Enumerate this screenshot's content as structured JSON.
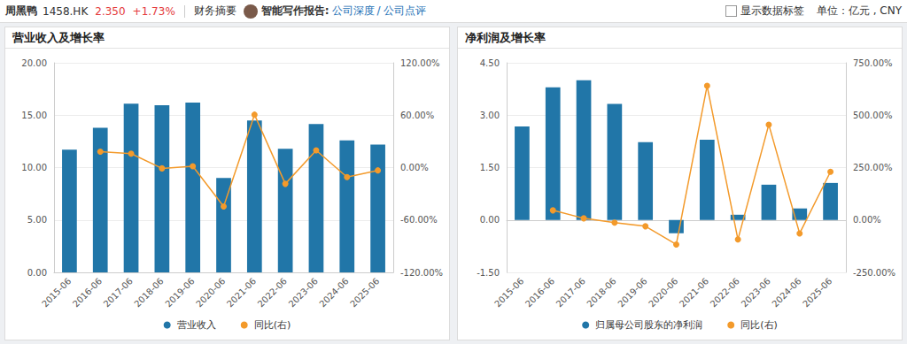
{
  "header": {
    "name": "周黑鸭",
    "code": "1458.HK",
    "price": "2.350",
    "change": "+1.73%",
    "tab": "财务摘要",
    "report_label": "智能写作报告:",
    "links": [
      "公司深度",
      "/ 公司点评"
    ],
    "checkbox": "显示数据标签",
    "unit": "单位：亿元 , CNY"
  },
  "chart_data": [
    {
      "type": "bar",
      "title": "营业收入及增长率",
      "categories": [
        "2015-06",
        "2016-06",
        "2017-06",
        "2018-06",
        "2019-06",
        "2020-06",
        "2021-06",
        "2022-06",
        "2023-06",
        "2024-06",
        "2025-06"
      ],
      "series": [
        {
          "name": "营业收入",
          "type": "bar",
          "color": "#2176a8",
          "values": [
            11.7,
            13.8,
            16.1,
            15.95,
            16.2,
            9.0,
            14.5,
            11.8,
            14.15,
            12.6,
            12.2
          ]
        },
        {
          "name": "同比(右)",
          "type": "line",
          "axis": "y2",
          "color": "#f39a2b",
          "marker": "circle",
          "values": [
            null,
            18.3,
            16.0,
            -0.9,
            1.6,
            -44.5,
            60.6,
            -18.6,
            19.7,
            -10.9,
            -3.2
          ]
        }
      ],
      "ylim": [
        0,
        20
      ],
      "yticks": [
        {
          "value": 0,
          "label": "0.00"
        },
        {
          "value": 5,
          "label": "5.00"
        },
        {
          "value": 10,
          "label": "10.00"
        },
        {
          "value": 15,
          "label": "15.00"
        },
        {
          "value": 20,
          "label": "20.00"
        }
      ],
      "y2lim": [
        -120,
        120
      ],
      "y2ticks": [
        {
          "value": -120,
          "label": "-120.00%"
        },
        {
          "value": -60,
          "label": "-60.00%"
        },
        {
          "value": 0,
          "label": "0.00%"
        },
        {
          "value": 60,
          "label": "60.00%"
        },
        {
          "value": 120,
          "label": "120.00%"
        }
      ],
      "grid": true,
      "legend": "bottom"
    },
    {
      "type": "bar",
      "title": "净利润及增长率",
      "categories": [
        "2015-06",
        "2016-06",
        "2017-06",
        "2018-06",
        "2019-06",
        "2020-06",
        "2021-06",
        "2022-06",
        "2023-06",
        "2024-06",
        "2025-06"
      ],
      "series": [
        {
          "name": "归属母公司股东的净利润",
          "type": "bar",
          "color": "#2176a8",
          "values": [
            2.68,
            3.8,
            4.0,
            3.32,
            2.23,
            -0.38,
            2.3,
            0.15,
            1.01,
            0.33,
            1.06
          ]
        },
        {
          "name": "同比(右)",
          "type": "line",
          "axis": "y2",
          "color": "#f39a2b",
          "marker": "circle",
          "values": [
            null,
            46,
            8,
            -13,
            -30,
            -117,
            640,
            -93,
            455,
            -64,
            230
          ]
        }
      ],
      "ylim": [
        -1.5,
        4.5
      ],
      "yticks": [
        {
          "value": -1.5,
          "label": "-1.50"
        },
        {
          "value": 0,
          "label": "0.00"
        },
        {
          "value": 1.5,
          "label": "1.50"
        },
        {
          "value": 3,
          "label": "3.00"
        },
        {
          "value": 4.5,
          "label": "4.50"
        }
      ],
      "y2lim": [
        -250,
        750
      ],
      "y2ticks": [
        {
          "value": -250,
          "label": "-250.00%"
        },
        {
          "value": 0,
          "label": "0.00%"
        },
        {
          "value": 250,
          "label": "250.00%"
        },
        {
          "value": 500,
          "label": "500.00%"
        },
        {
          "value": 750,
          "label": "750.00%"
        }
      ],
      "grid": true,
      "legend": "bottom"
    }
  ]
}
